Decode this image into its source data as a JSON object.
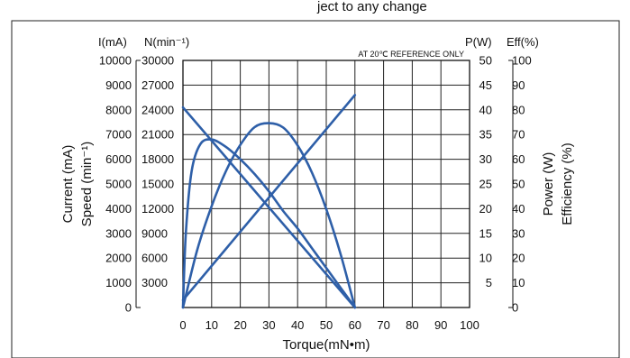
{
  "page": {
    "cropped_top_text": "ject to any change"
  },
  "chart_data": {
    "type": "line",
    "title": "",
    "note": "AT 20℃ REFERENCE ONLY",
    "x_axis": {
      "label": "Torque(mN•m)",
      "range": [
        0,
        100
      ],
      "ticks": [
        0,
        10,
        20,
        30,
        40,
        50,
        60,
        70,
        80,
        90,
        100
      ]
    },
    "left_axes": [
      {
        "header": "I(mA)",
        "label": "Current (mA)",
        "range": [
          0,
          10000
        ],
        "ticks": [
          0,
          1000,
          2000,
          3000,
          4000,
          5000,
          6000,
          7000,
          8000,
          9000,
          10000
        ],
        "tick_labels": [
          "0",
          "1000",
          "2000",
          "3000",
          "4000",
          "5000",
          "6000",
          "7000",
          "8000",
          "9000",
          "10000"
        ]
      },
      {
        "header": "N(min⁻¹)",
        "label": "Speed (min⁻¹)",
        "range": [
          0,
          30000
        ],
        "ticks": [
          3000,
          6000,
          9000,
          12000,
          15000,
          18000,
          21000,
          24000,
          27000,
          30000
        ],
        "tick_labels": [
          "3000",
          "6000",
          "9000",
          "12000",
          "15000",
          "18000",
          "21000",
          "24000",
          "27000",
          "30000"
        ]
      }
    ],
    "right_axes": [
      {
        "header": "P(W)",
        "label": "Power (W)",
        "range": [
          0,
          50
        ],
        "ticks": [
          5,
          10,
          15,
          20,
          25,
          30,
          35,
          40,
          45,
          50
        ],
        "tick_labels": [
          "5",
          "10",
          "15",
          "20",
          "25",
          "30",
          "35",
          "40",
          "45",
          "50"
        ]
      },
      {
        "header": "Eff(%)",
        "label": "Efficiency (%)",
        "range": [
          0,
          100
        ],
        "ticks": [
          0,
          10,
          20,
          30,
          40,
          50,
          60,
          70,
          80,
          90,
          100
        ],
        "tick_labels": [
          "0",
          "10",
          "20",
          "30",
          "40",
          "50",
          "60",
          "70",
          "80",
          "90",
          "100"
        ]
      }
    ],
    "grid": true,
    "line_color": "#2e5fa8",
    "series": [
      {
        "id": "current",
        "axis": "Current (mA)",
        "x": [
          0,
          60
        ],
        "y": [
          300,
          8600
        ]
      },
      {
        "id": "speed",
        "axis": "Speed (min⁻¹)",
        "x": [
          0,
          60
        ],
        "y": [
          24300,
          0
        ]
      },
      {
        "id": "power",
        "axis": "Power (W)",
        "x": [
          0,
          5,
          10,
          15,
          20,
          25,
          30,
          35,
          40,
          45,
          50,
          55,
          60
        ],
        "y": [
          0,
          11.7,
          20.5,
          27.6,
          32.9,
          36.5,
          37.3,
          36.4,
          32.8,
          27.3,
          19.9,
          10.8,
          0
        ]
      },
      {
        "id": "efficiency",
        "axis": "Efficiency (%)",
        "x": [
          0,
          1,
          3,
          6,
          10,
          15,
          20,
          25,
          30,
          35,
          40,
          45,
          50,
          55,
          60
        ],
        "y": [
          0,
          30,
          55,
          66,
          68,
          65,
          60,
          54,
          47,
          39,
          32,
          24,
          16,
          8,
          0
        ]
      }
    ]
  }
}
